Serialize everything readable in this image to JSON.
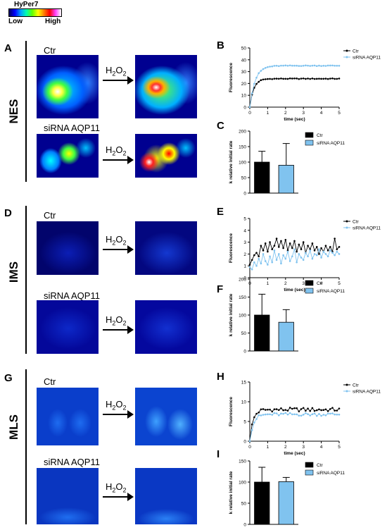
{
  "colorbar": {
    "title": "HyPer7",
    "low": "Low",
    "high": "High"
  },
  "rows": [
    {
      "label": "NES",
      "letter": "A",
      "ctr": "Ctr",
      "sirna": "siRNA  AQP11"
    },
    {
      "label": "IMS",
      "letter": "D",
      "ctr": "Ctr",
      "sirna": "siRNA  AQP11"
    },
    {
      "label": "MLS",
      "letter": "G",
      "ctr": "Ctr",
      "sirna": "siRNA AQP11"
    }
  ],
  "treatment": {
    "h": "H",
    "two": "2",
    "o": "O",
    "two2": "2"
  },
  "colors": {
    "ctr": "#000000",
    "sirna": "#80c3ef"
  },
  "chart_data": [
    {
      "letter": "B",
      "type": "line",
      "xlabel": "time (sec)",
      "ylabel": "Fluorescence",
      "xlim": [
        0,
        5
      ],
      "ylim": [
        0,
        50
      ],
      "xticks": [
        0,
        1,
        2,
        3,
        4,
        5
      ],
      "yticks": [
        0,
        10,
        20,
        30,
        40,
        50
      ],
      "legend": "top-right",
      "series": [
        {
          "name": "Ctr",
          "kind": "rise",
          "plateau": 24,
          "tau": 0.22,
          "noise": 0.3
        },
        {
          "name": "siRNA AQP11",
          "kind": "rise",
          "plateau": 35,
          "tau": 0.3,
          "noise": 0.3
        }
      ]
    },
    {
      "letter": "C",
      "type": "bar",
      "ylabel": "k relative initial rate",
      "ylim": [
        0,
        200
      ],
      "yticks": [
        0,
        50,
        100,
        150,
        200
      ],
      "legend": "top-right",
      "categories": [
        "Ctr",
        "siRNA AQP11"
      ],
      "values": [
        100,
        90
      ],
      "errors": [
        35,
        70
      ]
    },
    {
      "letter": "E",
      "type": "line",
      "xlabel": "time (sec)",
      "ylabel": "Fluorescence",
      "xlim": [
        0,
        5
      ],
      "ylim": [
        0,
        5
      ],
      "xticks": [
        0,
        1,
        2,
        3,
        4,
        5
      ],
      "yticks": [
        0,
        1,
        2,
        3,
        4,
        5
      ],
      "legend": "top-right",
      "series": [
        {
          "name": "Ctr",
          "values": [
            1.1,
            1.5,
            1.9,
            2.1,
            1.8,
            2.7,
            2.3,
            2.9,
            2.2,
            3.0,
            2.4,
            2.7,
            3.3,
            2.6,
            3.1,
            2.5,
            3.2,
            2.3,
            2.9,
            2.5,
            3.1,
            2.2,
            2.8,
            2.4,
            3.0,
            2.1,
            2.7,
            2.4,
            2.9,
            2.3,
            2.6,
            2.0,
            2.5,
            2.2,
            2.7,
            2.3,
            2.6,
            2.2,
            3.3,
            2.4,
            2.6
          ]
        },
        {
          "name": "siRNA AQP11",
          "values": [
            0.9,
            0.7,
            1.3,
            1.0,
            1.6,
            1.2,
            2.0,
            1.4,
            1.1,
            1.8,
            1.3,
            2.3,
            1.5,
            2.0,
            1.2,
            1.9,
            1.6,
            2.2,
            1.4,
            1.8,
            2.4,
            1.3,
            2.0,
            1.7,
            1.5,
            2.1,
            1.8,
            2.3,
            1.6,
            2.0,
            1.9,
            2.4,
            1.7,
            2.2,
            2.0,
            1.8,
            2.3,
            2.1,
            1.9,
            2.2,
            2.0
          ]
        }
      ]
    },
    {
      "letter": "F",
      "type": "bar",
      "ylabel": "k relative initial rate",
      "ylim": [
        0,
        200
      ],
      "yticks": [
        0,
        50,
        100,
        150,
        200
      ],
      "legend": "top-right",
      "categories": [
        "Ctr",
        "siRNA AQP11"
      ],
      "values": [
        100,
        80
      ],
      "errors": [
        58,
        35
      ]
    },
    {
      "letter": "H",
      "type": "line",
      "xlabel": "time (sec)",
      "ylabel": "Fluorescence",
      "xlim": [
        0,
        5
      ],
      "ylim": [
        0,
        15
      ],
      "xticks": [
        0,
        1,
        2,
        3,
        4,
        5
      ],
      "yticks": [
        0,
        5,
        10,
        15
      ],
      "legend": "top-right",
      "series": [
        {
          "name": "Ctr",
          "kind": "rise",
          "plateau": 8,
          "tau": 0.18,
          "noise": 0.5
        },
        {
          "name": "siRNA AQP11",
          "kind": "rise",
          "plateau": 6.8,
          "tau": 0.2,
          "noise": 0.4
        }
      ]
    },
    {
      "letter": "I",
      "type": "bar",
      "ylabel": "k relative initial rate",
      "ylim": [
        0,
        150
      ],
      "yticks": [
        0,
        50,
        100,
        150
      ],
      "legend": "top-right",
      "categories": [
        "Ctr",
        "siRNA AQP11"
      ],
      "values": [
        100,
        101
      ],
      "errors": [
        35,
        10
      ]
    }
  ]
}
